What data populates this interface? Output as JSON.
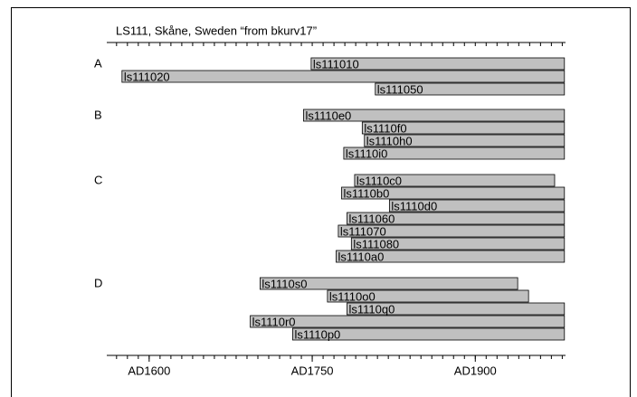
{
  "chart_data": {
    "type": "range-bar",
    "title": "LS111, Skåne, Sweden “from bkurv17”",
    "xlim": [
      1561,
      1983
    ],
    "xticks": [
      {
        "value": 1600,
        "label": "AD1600"
      },
      {
        "value": 1750,
        "label": "AD1750"
      },
      {
        "value": 1900,
        "label": "AD1900"
      }
    ],
    "xticks_minor": [
      1570,
      1580,
      1590,
      1600,
      1610,
      1620,
      1630,
      1640,
      1650,
      1660,
      1670,
      1680,
      1690,
      1700,
      1710,
      1720,
      1730,
      1740,
      1750,
      1760,
      1770,
      1780,
      1790,
      1800,
      1810,
      1820,
      1830,
      1840,
      1850,
      1860,
      1870,
      1880,
      1890,
      1900,
      1910,
      1920,
      1930,
      1940,
      1950,
      1960,
      1970,
      1980
    ],
    "color": "#c0c0c0",
    "groups": [
      {
        "name": "A",
        "bars": [
          {
            "label": "ls111010",
            "start": 1749,
            "end": 1982
          },
          {
            "label": "ls111020",
            "start": 1575,
            "end": 1982
          },
          {
            "label": "ls111050",
            "start": 1808,
            "end": 1982
          }
        ]
      },
      {
        "name": "B",
        "bars": [
          {
            "label": "ls1110e0",
            "start": 1742,
            "end": 1982
          },
          {
            "label": "ls1110f0",
            "start": 1796,
            "end": 1982
          },
          {
            "label": "ls1110h0",
            "start": 1798,
            "end": 1982
          },
          {
            "label": "ls1110i0",
            "start": 1779,
            "end": 1982
          }
        ]
      },
      {
        "name": "C",
        "bars": [
          {
            "label": "ls1110c0",
            "start": 1789,
            "end": 1973
          },
          {
            "label": "ls1110b0",
            "start": 1777,
            "end": 1982
          },
          {
            "label": "ls1110d0",
            "start": 1821,
            "end": 1982
          },
          {
            "label": "ls111060",
            "start": 1782,
            "end": 1982
          },
          {
            "label": "ls111070",
            "start": 1774,
            "end": 1982
          },
          {
            "label": "ls111080",
            "start": 1786,
            "end": 1982
          },
          {
            "label": "ls1110a0",
            "start": 1772,
            "end": 1982
          }
        ]
      },
      {
        "name": "D",
        "bars": [
          {
            "label": "ls1110s0",
            "start": 1702,
            "end": 1939
          },
          {
            "label": "ls1110o0",
            "start": 1764,
            "end": 1949
          },
          {
            "label": "ls1110q0",
            "start": 1782,
            "end": 1982
          },
          {
            "label": "ls1110r0",
            "start": 1693,
            "end": 1982
          },
          {
            "label": "ls1110p0",
            "start": 1732,
            "end": 1982
          }
        ]
      }
    ]
  }
}
